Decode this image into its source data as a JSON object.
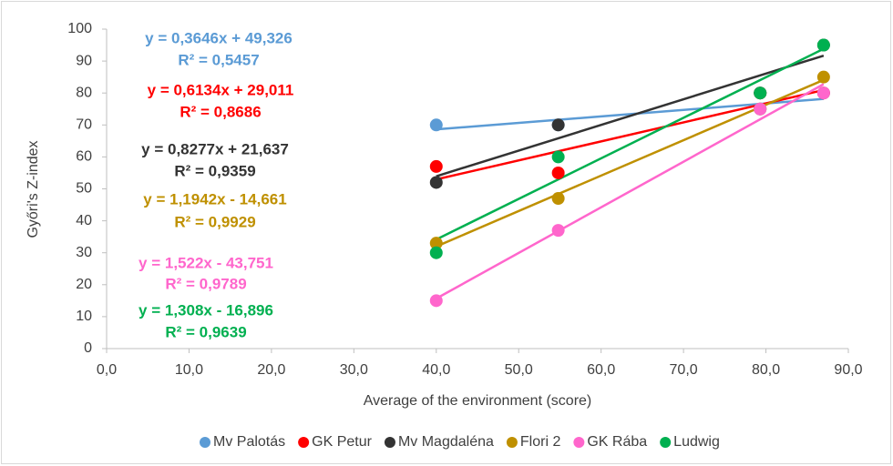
{
  "chart_data": {
    "type": "scatter",
    "x_label": "Average of the environment (score)",
    "y_label": "Győri's Z-index",
    "xlim": [
      0,
      90
    ],
    "ylim": [
      0,
      100
    ],
    "xticks": [
      {
        "value": 0,
        "label": "0,0"
      },
      {
        "value": 10,
        "label": "10,0"
      },
      {
        "value": 20,
        "label": "20,0"
      },
      {
        "value": 30,
        "label": "30,0"
      },
      {
        "value": 40,
        "label": "40,0"
      },
      {
        "value": 50,
        "label": "50,0"
      },
      {
        "value": 60,
        "label": "60,0"
      },
      {
        "value": 70,
        "label": "70,0"
      },
      {
        "value": 80,
        "label": "80,0"
      },
      {
        "value": 90,
        "label": "90,0"
      }
    ],
    "yticks": [
      0,
      10,
      20,
      30,
      40,
      50,
      60,
      70,
      80,
      90,
      100
    ],
    "legend": "bottom",
    "x": [
      40,
      54.8,
      79.3,
      87
    ],
    "series": [
      {
        "name": "Mv Palotás",
        "color": "#5b9bd5",
        "values": [
          70,
          70,
          75,
          80
        ],
        "equation": "y = 0,3646x + 49,326",
        "r2": "R² = 0,5457"
      },
      {
        "name": "GK Petur",
        "color": "#ff0000",
        "values": [
          57,
          55,
          80,
          80
        ],
        "equation": "y = 0,6134x + 29,011",
        "r2": "R² = 0,8686"
      },
      {
        "name": "Mv Magdaléna",
        "color": "#333333",
        "values": [
          52,
          70,
          80,
          95
        ],
        "equation": "y = 0,8277x + 21,637",
        "r2": "R² = 0,9359"
      },
      {
        "name": "Flori 2",
        "color": "#bf9000",
        "values": [
          33,
          47,
          75,
          85
        ],
        "equation": "y = 1,1942x - 14,661",
        "r2": "R² = 0,9929"
      },
      {
        "name": "GK Rába",
        "color": "#ff66cc",
        "values": [
          15,
          37,
          75,
          80
        ],
        "equation": "y = 1,522x - 43,751",
        "r2": "R² = 0,9789"
      },
      {
        "name": "Ludwig",
        "color": "#00b050",
        "values": [
          30,
          60,
          80,
          95
        ],
        "equation": "y = 1,308x - 16,896",
        "r2": "R² = 0,9639"
      }
    ]
  }
}
